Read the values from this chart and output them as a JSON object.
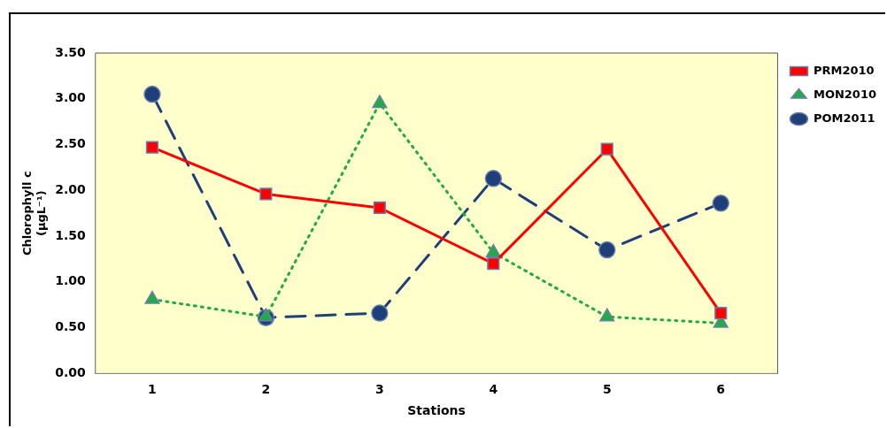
{
  "chart_data": {
    "type": "line",
    "xlabel": "Stations",
    "ylabel": "Chlorophyll c\n(µgL⁻¹)",
    "categories": [
      "1",
      "2",
      "3",
      "4",
      "5",
      "6"
    ],
    "ylim": [
      0,
      3.5
    ],
    "yticks": [
      {
        "value": 0,
        "label": "0.00"
      },
      {
        "value": 0.5,
        "label": "0.50"
      },
      {
        "value": 1,
        "label": "1.00"
      },
      {
        "value": 1.5,
        "label": "1.50"
      },
      {
        "value": 2,
        "label": "2.00"
      },
      {
        "value": 2.5,
        "label": "2.50"
      },
      {
        "value": 3,
        "label": "3.00"
      },
      {
        "value": 3.5,
        "label": "3.50"
      }
    ],
    "grid": false,
    "legend": "right",
    "series": [
      {
        "name": "PRM2010",
        "color": "#ff0000",
        "marker": "square",
        "line_style": "solid",
        "values": [
          2.47,
          1.96,
          1.81,
          1.2,
          2.45,
          0.66
        ]
      },
      {
        "name": "MON2010",
        "color": "#22aa44",
        "marker": "triangle",
        "line_style": "dotted",
        "values": [
          0.81,
          0.62,
          2.95,
          1.32,
          0.62,
          0.55
        ]
      },
      {
        "name": "POM2011",
        "color": "#1f3f7a",
        "marker": "circle",
        "line_style": "dashed",
        "values": [
          3.05,
          0.61,
          0.66,
          2.13,
          1.35,
          1.86
        ]
      }
    ]
  }
}
